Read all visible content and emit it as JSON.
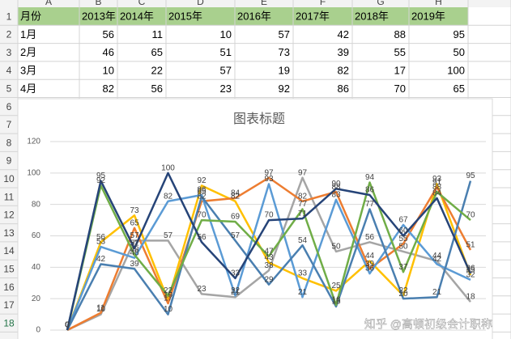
{
  "sheet": {
    "columns": [
      "A",
      "B",
      "C",
      "D",
      "E",
      "F",
      "G",
      "H"
    ],
    "rows": [
      1,
      2,
      3,
      4,
      5,
      6,
      7,
      8,
      9,
      10,
      11,
      12,
      13,
      14,
      15,
      16,
      17,
      18
    ],
    "table": {
      "header": [
        "月份",
        "2013年",
        "2014年",
        "2015年",
        "2016年",
        "2017年",
        "2018年",
        "2019年"
      ],
      "rows": [
        [
          "1月",
          56,
          11,
          10,
          57,
          42,
          88,
          95
        ],
        [
          "2月",
          46,
          65,
          51,
          73,
          39,
          55,
          50
        ],
        [
          "3月",
          10,
          22,
          57,
          19,
          82,
          17,
          100
        ],
        [
          "4月",
          82,
          56,
          23,
          92,
          86,
          70,
          65
        ]
      ]
    }
  },
  "chart_data": {
    "type": "line",
    "title": "图表标题",
    "categories": [
      null,
      null,
      null,
      null,
      null,
      null,
      null,
      null,
      null,
      null,
      null,
      null,
      null
    ],
    "ylim": [
      0,
      120
    ],
    "yticks": [
      0,
      20,
      40,
      60,
      80,
      100,
      120
    ],
    "grid": true,
    "series": [
      {
        "color": "#a5a5a5",
        "values": [
          0,
          10,
          57,
          57,
          23,
          21,
          38,
          97,
          50,
          56,
          50,
          44,
          18
        ]
      },
      {
        "color": "#ffc000",
        "values": [
          0,
          56,
          73,
          19,
          92,
          82,
          43,
          33,
          25,
          44,
          22,
          93,
          35
        ]
      },
      {
        "color": "#ed7d31",
        "values": [
          0,
          11,
          65,
          17,
          82,
          84,
          97,
          82,
          88,
          39,
          55,
          91,
          51
        ]
      },
      {
        "color": "#5b9bd5",
        "values": [
          0,
          53,
          46,
          82,
          86,
          22,
          93,
          21,
          83,
          36,
          67,
          42,
          32
        ]
      },
      {
        "color": "#4a7fb0",
        "values": [
          0,
          42,
          39,
          10,
          85,
          57,
          29,
          54,
          15,
          77,
          20,
          21,
          95
        ]
      },
      {
        "color": "#70ad47",
        "values": [
          0,
          92,
          48,
          22,
          70,
          69,
          47,
          77,
          16,
          94,
          37,
          88,
          70
        ]
      },
      {
        "color": "#264478",
        "values": [
          0,
          95,
          52,
          100,
          56,
          33,
          70,
          71,
          90,
          86,
          60,
          84,
          36
        ]
      }
    ]
  },
  "watermark": "知乎 @高顿初级会计职称"
}
